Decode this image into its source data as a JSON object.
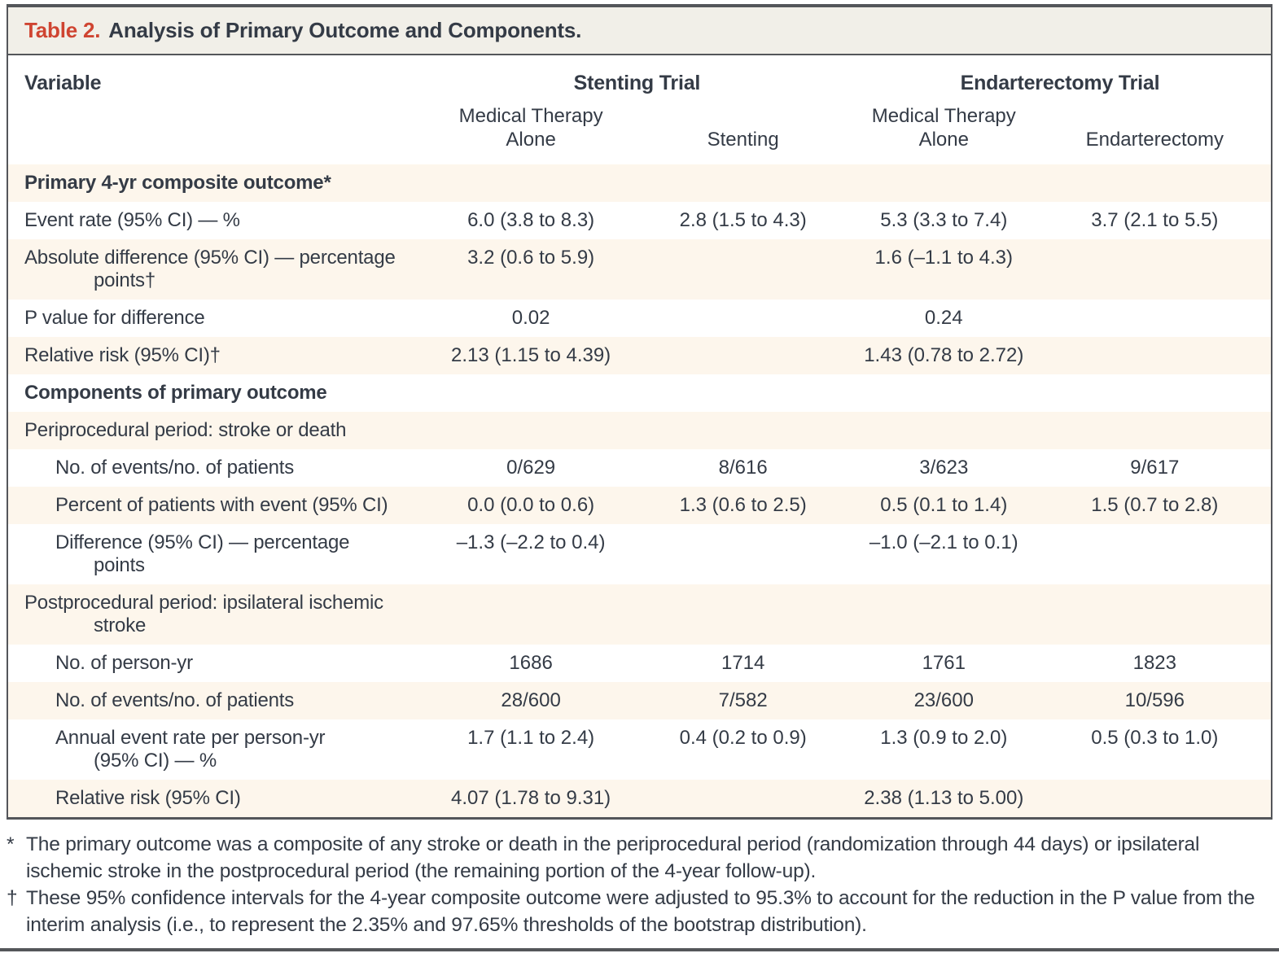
{
  "table": {
    "title_label": "Table 2.",
    "title_text": "Analysis of Primary Outcome and Components.",
    "variable_header": "Variable",
    "group_headers": [
      "Stenting Trial",
      "Endarterectomy Trial"
    ],
    "sub_headers": [
      "Medical Therapy\nAlone",
      "Stenting",
      "Medical Therapy\nAlone",
      "Endarterectomy"
    ],
    "rows": [
      {
        "label": "Primary 4-yr composite outcome*",
        "section": true,
        "indent": false,
        "values": [
          "",
          "",
          "",
          ""
        ]
      },
      {
        "label": "Event rate (95% CI) — %",
        "section": false,
        "indent": false,
        "values": [
          "6.0 (3.8 to 8.3)",
          "2.8 (1.5 to 4.3)",
          "5.3 (3.3 to 7.4)",
          "3.7 (2.1 to 5.5)"
        ]
      },
      {
        "label": "Absolute difference (95% CI) — percentage\npoints†",
        "section": false,
        "indent": false,
        "values": [
          "3.2 (0.6 to 5.9)",
          "",
          "1.6 (–1.1 to 4.3)",
          ""
        ]
      },
      {
        "label": "P value for difference",
        "section": false,
        "indent": false,
        "values": [
          "0.02",
          "",
          "0.24",
          ""
        ]
      },
      {
        "label": "Relative risk (95% CI)†",
        "section": false,
        "indent": false,
        "values": [
          "2.13 (1.15 to 4.39)",
          "",
          "1.43 (0.78 to 2.72)",
          ""
        ]
      },
      {
        "label": "Components of primary outcome",
        "section": true,
        "indent": false,
        "values": [
          "",
          "",
          "",
          ""
        ]
      },
      {
        "label": "Periprocedural period: stroke or death",
        "section": false,
        "indent": false,
        "values": [
          "",
          "",
          "",
          ""
        ]
      },
      {
        "label": "No. of events/no. of patients",
        "section": false,
        "indent": true,
        "values": [
          "0/629",
          "8/616",
          "3/623",
          "9/617"
        ]
      },
      {
        "label": "Percent of patients with event (95% CI)",
        "section": false,
        "indent": true,
        "values": [
          "0.0 (0.0 to 0.6)",
          "1.3 (0.6 to 2.5)",
          "0.5 (0.1 to 1.4)",
          "1.5 (0.7 to 2.8)"
        ]
      },
      {
        "label": "Difference (95% CI) — percentage\npoints",
        "section": false,
        "indent": true,
        "values": [
          "–1.3 (–2.2 to 0.4)",
          "",
          "–1.0 (–2.1 to 0.1)",
          ""
        ]
      },
      {
        "label": "Postprocedural period: ipsilateral ischemic\nstroke",
        "section": false,
        "indent": false,
        "values": [
          "",
          "",
          "",
          ""
        ]
      },
      {
        "label": "No. of person-yr",
        "section": false,
        "indent": true,
        "values": [
          "1686",
          "1714",
          "1761",
          "1823"
        ]
      },
      {
        "label": "No. of events/no. of patients",
        "section": false,
        "indent": true,
        "values": [
          "28/600",
          "7/582",
          "23/600",
          "10/596"
        ]
      },
      {
        "label": "Annual event rate per person-yr\n(95% CI) — %",
        "section": false,
        "indent": true,
        "values": [
          "1.7 (1.1 to 2.4)",
          "0.4 (0.2 to 0.9)",
          "1.3 (0.9 to 2.0)",
          "0.5 (0.3 to 1.0)"
        ]
      },
      {
        "label": "Relative risk (95% CI)",
        "section": false,
        "indent": true,
        "values": [
          "4.07 (1.78 to 9.31)",
          "",
          "2.38 (1.13 to 5.00)",
          ""
        ]
      }
    ]
  },
  "footnotes": [
    {
      "marker": "*",
      "text": "The primary outcome was a composite of any stroke or death in the periprocedural period (randomization through 44 days) or ipsilateral ischemic stroke in the postprocedural period (the remaining portion of the 4-year follow-up)."
    },
    {
      "marker": "†",
      "text": "These 95% confidence intervals for the 4-year composite outcome were adjusted to 95.3% to account for the reduction in the P value from the interim analysis (i.e., to represent the 2.35% and 97.65% thresholds of the bootstrap distribution)."
    }
  ],
  "colors": {
    "accent_red": "#cf4431",
    "title_bar_bg": "#f1efe8",
    "cream_row_bg": "#fdf6ec",
    "border_dark": "#54565a",
    "text_dark": "#343b46"
  }
}
